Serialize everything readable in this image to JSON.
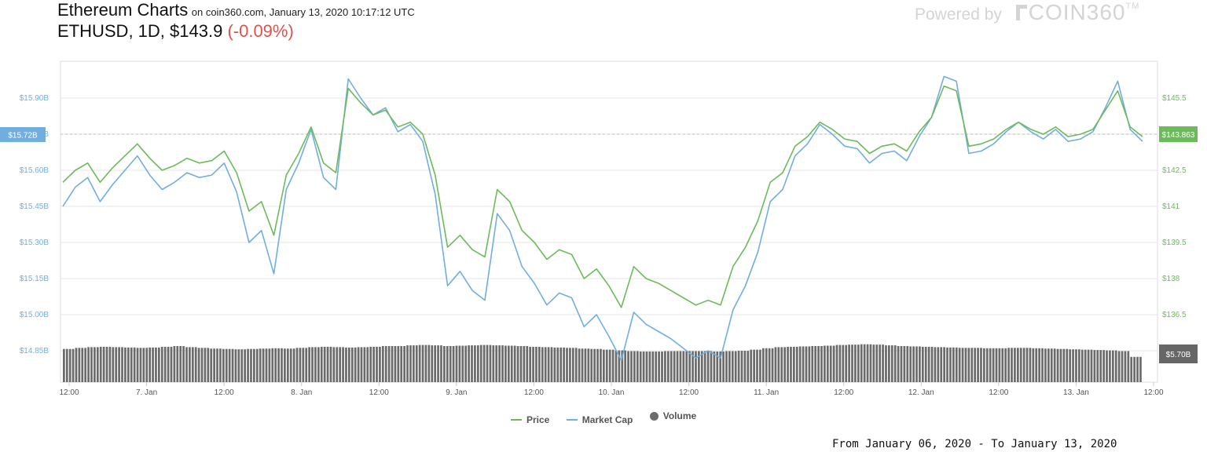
{
  "header": {
    "title": "Ethereum Charts",
    "source": "on coin360.com, January 13, 2020 10:17:12 UTC",
    "pair_info": "ETHUSD, 1D, $143.9",
    "change": "(-0.09%)"
  },
  "brand": {
    "powered_by": "Powered by",
    "logo_text": "COIN360",
    "trademark": "TM"
  },
  "colors": {
    "price": "#6cbb5a",
    "market_cap": "#71aee0",
    "volume": "#6b6b6b",
    "change_negative": "#d9534f",
    "grid": "#e6e6e6"
  },
  "chart_data": {
    "type": "line",
    "x_tick_labels": [
      "12:00",
      "7. Jan",
      "12:00",
      "8. Jan",
      "12:00",
      "9. Jan",
      "12:00",
      "10. Jan",
      "12:00",
      "11. Jan",
      "12:00",
      "12. Jan",
      "12:00",
      "13. Jan",
      "12:00"
    ],
    "left_axis": {
      "tick_labels": [
        "$15.90B",
        "$15.75B",
        "$15.60B",
        "$15.45B",
        "$15.30B",
        "$15.15B",
        "$15.00B",
        "$14.85B"
      ],
      "range": [
        14.85,
        15.9
      ],
      "current_label": "$15.72B"
    },
    "right_axis": {
      "tick_labels": [
        "$145.5",
        "$144",
        "$142.5",
        "$141",
        "$139.5",
        "$138",
        "$136.5"
      ],
      "range": [
        136.5,
        145.5
      ],
      "current_label": "$143.863"
    },
    "volume_current_label": "$5.70B",
    "legend": [
      "Price",
      "Market Cap",
      "Volume"
    ],
    "series": [
      {
        "name": "Price",
        "axis": "right",
        "values": [
          142.0,
          142.5,
          142.8,
          142.0,
          142.6,
          143.1,
          143.6,
          143.0,
          142.5,
          142.7,
          143.0,
          142.8,
          142.9,
          143.3,
          142.4,
          140.8,
          141.2,
          139.8,
          142.3,
          143.2,
          144.3,
          142.8,
          142.4,
          145.9,
          145.3,
          144.8,
          145.0,
          144.3,
          144.5,
          144.0,
          142.3,
          139.3,
          139.8,
          139.2,
          138.9,
          141.7,
          141.2,
          140.0,
          139.5,
          138.8,
          139.2,
          139.0,
          138.0,
          138.4,
          137.7,
          136.8,
          138.5,
          138.0,
          137.8,
          137.5,
          137.2,
          136.9,
          137.1,
          136.9,
          138.5,
          139.3,
          140.4,
          142.0,
          142.4,
          143.5,
          143.9,
          144.5,
          144.2,
          143.8,
          143.7,
          143.2,
          143.5,
          143.6,
          143.3,
          144.1,
          144.7,
          146.0,
          145.8,
          143.5,
          143.6,
          143.8,
          144.2,
          144.5,
          144.2,
          144.0,
          144.3,
          143.9,
          144.0,
          144.2,
          145.0,
          145.8,
          144.3,
          143.9
        ]
      },
      {
        "name": "Market Cap",
        "axis": "left",
        "values": [
          15.45,
          15.53,
          15.57,
          15.47,
          15.54,
          15.6,
          15.66,
          15.58,
          15.52,
          15.55,
          15.59,
          15.57,
          15.58,
          15.63,
          15.51,
          15.3,
          15.35,
          15.17,
          15.52,
          15.63,
          15.77,
          15.57,
          15.52,
          15.98,
          15.9,
          15.83,
          15.86,
          15.76,
          15.79,
          15.72,
          15.5,
          15.12,
          15.18,
          15.1,
          15.06,
          15.42,
          15.35,
          15.2,
          15.13,
          15.04,
          15.09,
          15.07,
          14.95,
          15.0,
          14.91,
          14.81,
          15.01,
          14.96,
          14.93,
          14.9,
          14.86,
          14.82,
          14.85,
          14.82,
          15.02,
          15.12,
          15.26,
          15.47,
          15.52,
          15.66,
          15.71,
          15.79,
          15.75,
          15.7,
          15.69,
          15.63,
          15.67,
          15.68,
          15.64,
          15.74,
          15.82,
          15.99,
          15.97,
          15.67,
          15.68,
          15.71,
          15.76,
          15.8,
          15.76,
          15.73,
          15.77,
          15.72,
          15.73,
          15.76,
          15.86,
          15.97,
          15.77,
          15.72
        ]
      },
      {
        "name": "Volume",
        "type": "bar",
        "relative_values": [
          0.92,
          0.95,
          0.97,
          0.98,
          0.97,
          0.96,
          0.95,
          0.96,
          0.98,
          1.0,
          0.97,
          0.95,
          0.93,
          0.92,
          0.91,
          0.92,
          0.93,
          0.94,
          0.93,
          0.95,
          0.97,
          0.98,
          0.97,
          0.96,
          0.97,
          0.98,
          1.0,
          1.0,
          1.02,
          1.03,
          1.02,
          1.0,
          1.01,
          1.02,
          1.03,
          1.02,
          1.01,
          1.0,
          0.98,
          0.97,
          0.96,
          0.95,
          0.93,
          0.92,
          0.9,
          0.88,
          0.86,
          0.85,
          0.85,
          0.86,
          0.86,
          0.86,
          0.86,
          0.85,
          0.86,
          0.87,
          0.9,
          0.94,
          0.97,
          0.98,
          0.99,
          1.0,
          1.01,
          1.03,
          1.04,
          1.05,
          1.04,
          1.02,
          1.0,
          0.99,
          0.98,
          0.97,
          0.96,
          0.95,
          0.95,
          0.94,
          0.94,
          0.95,
          0.95,
          0.94,
          0.93,
          0.92,
          0.91,
          0.9,
          0.89,
          0.88,
          0.86,
          0.7
        ]
      }
    ]
  },
  "footer": {
    "range": "From January 06, 2020 - To January 13, 2020"
  }
}
